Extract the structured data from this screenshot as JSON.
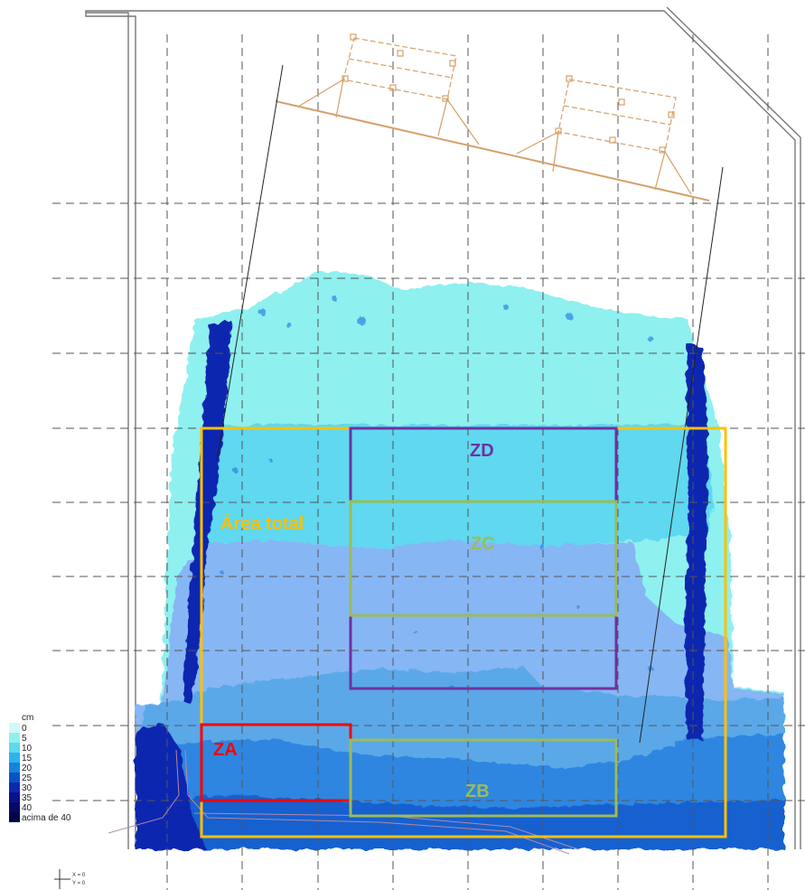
{
  "zones": [
    {
      "id": "total",
      "label": "Área total",
      "color": "#ffc000"
    },
    {
      "id": "ZD",
      "label": "ZD",
      "color": "#7030a0"
    },
    {
      "id": "ZC",
      "label": "ZC",
      "color": "#9bbb59"
    },
    {
      "id": "ZA",
      "label": "ZA",
      "color": "#ff0000"
    },
    {
      "id": "ZB",
      "label": "ZB",
      "color": "#9bbb59"
    }
  ],
  "legend": {
    "unit": "cm",
    "entries": [
      {
        "label": "0",
        "color": "#d4f8f8"
      },
      {
        "label": "5",
        "color": "#8ef0ef"
      },
      {
        "label": "10",
        "color": "#5fd8f0"
      },
      {
        "label": "15",
        "color": "#2fb2ec"
      },
      {
        "label": "20",
        "color": "#1584d8"
      },
      {
        "label": "25",
        "color": "#0a52c8"
      },
      {
        "label": "30",
        "color": "#0a28b0"
      },
      {
        "label": "35",
        "color": "#08128a"
      },
      {
        "label": "40",
        "color": "#060a64"
      },
      {
        "label": "acima de 40",
        "color": "#04064a"
      }
    ]
  },
  "coordinate_marker": {
    "x": "X = 0",
    "y": "Y = 0"
  },
  "depth_colors": {
    "band_5": "#8ef0ef",
    "band_10": "#5fd8f0",
    "band_15": "#86b6f4",
    "band_20": "#5aa8e8",
    "band_25": "#2f86e0",
    "band_30": "#1560d0",
    "band_deep": "#0a28b0"
  }
}
